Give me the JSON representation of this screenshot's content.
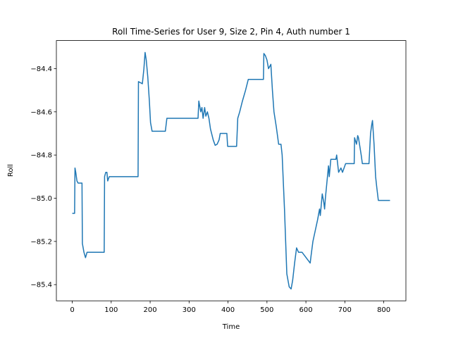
{
  "chart_data": {
    "type": "line",
    "title": "Roll Time-Series for User 9, Size 2, Pin 4, Auth number 1",
    "xlabel": "Time",
    "ylabel": "Roll",
    "color": "#1f77b4",
    "x": [
      0,
      6,
      7,
      9,
      12,
      15,
      25,
      26,
      30,
      34,
      38,
      82,
      83,
      86,
      89,
      91,
      93,
      95,
      169,
      170,
      180,
      184,
      187,
      190,
      194,
      198,
      201,
      205,
      239,
      243,
      323,
      325,
      328,
      330,
      333,
      336,
      340,
      343,
      347,
      351,
      355,
      362,
      367,
      372,
      377,
      380,
      397,
      399,
      422,
      425,
      430,
      437,
      445,
      452,
      491,
      492,
      496,
      500,
      504,
      510,
      514,
      518,
      524,
      530,
      536,
      539,
      545,
      548,
      551,
      557,
      562,
      566,
      571,
      576,
      581,
      586,
      590,
      611,
      613,
      618,
      624,
      630,
      635,
      637,
      642,
      646,
      648,
      650,
      658,
      660,
      664,
      677,
      679,
      684,
      690,
      694,
      702,
      724,
      725,
      730,
      733,
      735,
      742,
      745,
      762,
      766,
      769,
      771,
      775,
      779,
      782,
      786,
      816
    ],
    "values": [
      -85.07,
      -85.07,
      -84.86,
      -84.88,
      -84.92,
      -84.93,
      -84.93,
      -85.21,
      -85.25,
      -85.275,
      -85.25,
      -85.25,
      -84.9,
      -84.88,
      -84.88,
      -84.92,
      -84.91,
      -84.9,
      -84.9,
      -84.46,
      -84.47,
      -84.4,
      -84.325,
      -84.36,
      -84.44,
      -84.55,
      -84.65,
      -84.69,
      -84.69,
      -84.63,
      -84.63,
      -84.55,
      -84.58,
      -84.6,
      -84.58,
      -84.63,
      -84.58,
      -84.62,
      -84.6,
      -84.63,
      -84.68,
      -84.73,
      -84.755,
      -84.75,
      -84.73,
      -84.7,
      -84.7,
      -84.76,
      -84.76,
      -84.63,
      -84.6,
      -84.55,
      -84.5,
      -84.45,
      -84.45,
      -84.33,
      -84.34,
      -84.36,
      -84.4,
      -84.38,
      -84.5,
      -84.6,
      -84.67,
      -84.75,
      -84.75,
      -84.8,
      -85.05,
      -85.2,
      -85.35,
      -85.41,
      -85.42,
      -85.38,
      -85.3,
      -85.23,
      -85.25,
      -85.25,
      -85.25,
      -85.3,
      -85.27,
      -85.2,
      -85.15,
      -85.1,
      -85.05,
      -85.08,
      -84.98,
      -85.02,
      -85.05,
      -85.0,
      -84.85,
      -84.9,
      -84.82,
      -84.82,
      -84.8,
      -84.88,
      -84.86,
      -84.88,
      -84.84,
      -84.84,
      -84.72,
      -84.75,
      -84.71,
      -84.72,
      -84.8,
      -84.84,
      -84.84,
      -84.7,
      -84.66,
      -84.64,
      -84.75,
      -84.9,
      -84.95,
      -85.01,
      -85.01
    ],
    "xlim": [
      -40.8,
      856.8
    ],
    "ylim": [
      -85.475,
      -84.27
    ],
    "xticks": [
      0,
      100,
      200,
      300,
      400,
      500,
      600,
      700,
      800
    ],
    "yticks": [
      {
        "value": -85.4,
        "label": "−85.4"
      },
      {
        "value": -85.2,
        "label": "−85.2"
      },
      {
        "value": -85.0,
        "label": "−85.0"
      },
      {
        "value": -84.8,
        "label": "−84.8"
      },
      {
        "value": -84.6,
        "label": "−84.6"
      },
      {
        "value": -84.4,
        "label": "−84.4"
      }
    ],
    "grid": false
  }
}
